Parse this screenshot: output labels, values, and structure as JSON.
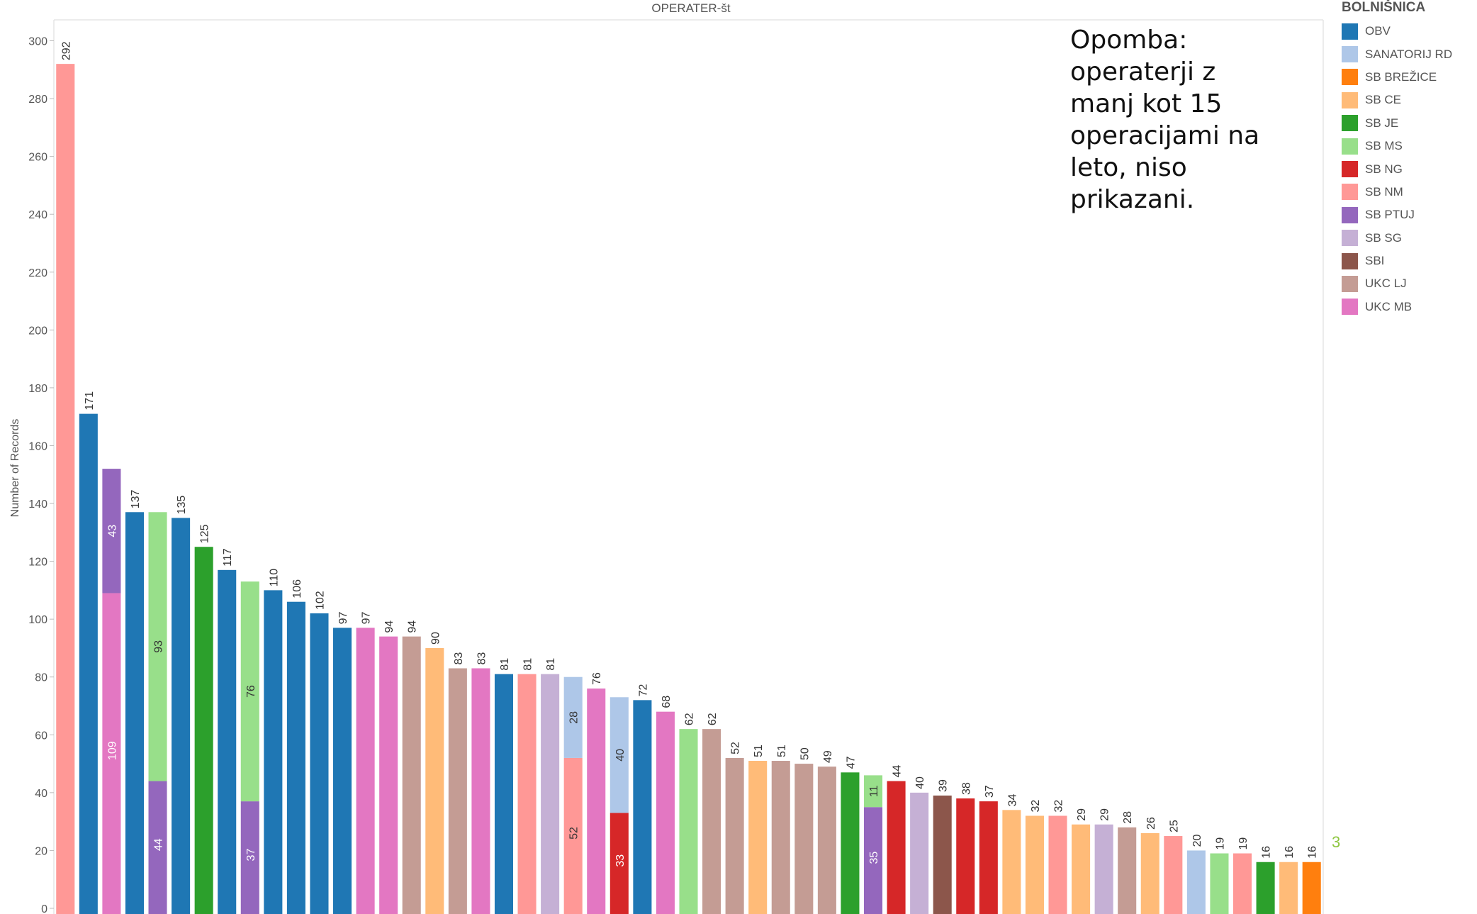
{
  "chart_data": {
    "type": "bar",
    "stacked": true,
    "title": "OPERATER-št",
    "ylabel": "Number of Records",
    "xlabel": "",
    "ylim": [
      0,
      305
    ],
    "yticks": [
      0,
      20,
      40,
      60,
      80,
      100,
      120,
      140,
      160,
      180,
      200,
      220,
      240,
      260,
      280,
      300
    ],
    "legend": {
      "title": "BOLNIŠNICA",
      "placement": "right",
      "items": [
        {
          "name": "OBV",
          "color": "#1f77b4"
        },
        {
          "name": "SANATORIJ RD",
          "color": "#aec7e8"
        },
        {
          "name": "SB BREŽICE",
          "color": "#ff7f0e"
        },
        {
          "name": "SB CE",
          "color": "#ffbb78"
        },
        {
          "name": "SB JE",
          "color": "#2ca02c"
        },
        {
          "name": "SB MS",
          "color": "#98df8a"
        },
        {
          "name": "SB NG",
          "color": "#d62728"
        },
        {
          "name": "SB NM",
          "color": "#ff9896"
        },
        {
          "name": "SB PTUJ",
          "color": "#9467bd"
        },
        {
          "name": "SB SG",
          "color": "#c5b0d5"
        },
        {
          "name": "SBI",
          "color": "#8c564b"
        },
        {
          "name": "UKC LJ",
          "color": "#c49c94"
        },
        {
          "name": "UKC MB",
          "color": "#e377c2"
        }
      ]
    },
    "bars": [
      {
        "total": 292,
        "segments": [
          {
            "series": "SB NM",
            "value": 292
          }
        ]
      },
      {
        "total": 171,
        "segments": [
          {
            "series": "OBV",
            "value": 171
          }
        ]
      },
      {
        "total": 152,
        "segments": [
          {
            "series": "UKC MB",
            "value": 109,
            "label": "109"
          },
          {
            "series": "SB PTUJ",
            "value": 43,
            "label": "43"
          }
        ]
      },
      {
        "total": 137,
        "segments": [
          {
            "series": "OBV",
            "value": 137
          }
        ]
      },
      {
        "total": 137,
        "segments": [
          {
            "series": "SB PTUJ",
            "value": 44,
            "label": "44"
          },
          {
            "series": "SB MS",
            "value": 93,
            "label": "93"
          }
        ]
      },
      {
        "total": 135,
        "segments": [
          {
            "series": "OBV",
            "value": 135
          }
        ]
      },
      {
        "total": 125,
        "segments": [
          {
            "series": "SB JE",
            "value": 125
          }
        ]
      },
      {
        "total": 117,
        "segments": [
          {
            "series": "OBV",
            "value": 117
          }
        ]
      },
      {
        "total": 113,
        "segments": [
          {
            "series": "SB PTUJ",
            "value": 37,
            "label": "37"
          },
          {
            "series": "SB MS",
            "value": 76,
            "label": "76"
          }
        ]
      },
      {
        "total": 110,
        "segments": [
          {
            "series": "OBV",
            "value": 110
          }
        ]
      },
      {
        "total": 106,
        "segments": [
          {
            "series": "OBV",
            "value": 106
          }
        ]
      },
      {
        "total": 102,
        "segments": [
          {
            "series": "OBV",
            "value": 102
          }
        ]
      },
      {
        "total": 97,
        "segments": [
          {
            "series": "OBV",
            "value": 97
          }
        ]
      },
      {
        "total": 97,
        "segments": [
          {
            "series": "UKC MB",
            "value": 97
          }
        ]
      },
      {
        "total": 94,
        "segments": [
          {
            "series": "UKC MB",
            "value": 94
          }
        ]
      },
      {
        "total": 94,
        "segments": [
          {
            "series": "UKC LJ",
            "value": 94
          }
        ]
      },
      {
        "total": 90,
        "segments": [
          {
            "series": "SB CE",
            "value": 90
          }
        ]
      },
      {
        "total": 83,
        "segments": [
          {
            "series": "UKC LJ",
            "value": 83
          }
        ]
      },
      {
        "total": 83,
        "segments": [
          {
            "series": "UKC MB",
            "value": 83
          }
        ]
      },
      {
        "total": 81,
        "segments": [
          {
            "series": "OBV",
            "value": 81
          }
        ]
      },
      {
        "total": 81,
        "segments": [
          {
            "series": "SB NM",
            "value": 81
          }
        ]
      },
      {
        "total": 81,
        "segments": [
          {
            "series": "SB SG",
            "value": 81
          }
        ]
      },
      {
        "total": 80,
        "segments": [
          {
            "series": "SB NM",
            "value": 52,
            "label": "52"
          },
          {
            "series": "SANATORIJ RD",
            "value": 28,
            "label": "28"
          }
        ]
      },
      {
        "total": 76,
        "segments": [
          {
            "series": "UKC MB",
            "value": 76
          }
        ]
      },
      {
        "total": 73,
        "segments": [
          {
            "series": "SB NG",
            "value": 33,
            "label": "33"
          },
          {
            "series": "SANATORIJ RD",
            "value": 40,
            "label": "40"
          }
        ]
      },
      {
        "total": 72,
        "segments": [
          {
            "series": "OBV",
            "value": 72
          }
        ]
      },
      {
        "total": 68,
        "segments": [
          {
            "series": "UKC MB",
            "value": 68
          }
        ]
      },
      {
        "total": 62,
        "segments": [
          {
            "series": "SB MS",
            "value": 62
          }
        ]
      },
      {
        "total": 62,
        "segments": [
          {
            "series": "UKC LJ",
            "value": 62
          }
        ]
      },
      {
        "total": 52,
        "segments": [
          {
            "series": "UKC LJ",
            "value": 52
          }
        ]
      },
      {
        "total": 51,
        "segments": [
          {
            "series": "SB CE",
            "value": 51
          }
        ]
      },
      {
        "total": 51,
        "segments": [
          {
            "series": "UKC LJ",
            "value": 51
          }
        ]
      },
      {
        "total": 50,
        "segments": [
          {
            "series": "UKC LJ",
            "value": 50
          }
        ]
      },
      {
        "total": 49,
        "segments": [
          {
            "series": "UKC LJ",
            "value": 49
          }
        ]
      },
      {
        "total": 47,
        "segments": [
          {
            "series": "SB JE",
            "value": 47
          }
        ]
      },
      {
        "total": 46,
        "segments": [
          {
            "series": "SB PTUJ",
            "value": 35,
            "label": "35"
          },
          {
            "series": "SB MS",
            "value": 11,
            "label": "11"
          }
        ]
      },
      {
        "total": 44,
        "segments": [
          {
            "series": "SB NG",
            "value": 44
          }
        ]
      },
      {
        "total": 40,
        "segments": [
          {
            "series": "SB SG",
            "value": 40
          }
        ]
      },
      {
        "total": 39,
        "segments": [
          {
            "series": "SBI",
            "value": 39
          }
        ]
      },
      {
        "total": 38,
        "segments": [
          {
            "series": "SB NG",
            "value": 38
          }
        ]
      },
      {
        "total": 37,
        "segments": [
          {
            "series": "SB NG",
            "value": 37
          }
        ]
      },
      {
        "total": 34,
        "segments": [
          {
            "series": "SB CE",
            "value": 34
          }
        ]
      },
      {
        "total": 32,
        "segments": [
          {
            "series": "SB CE",
            "value": 32
          }
        ]
      },
      {
        "total": 32,
        "segments": [
          {
            "series": "SB NM",
            "value": 32
          }
        ]
      },
      {
        "total": 29,
        "segments": [
          {
            "series": "SB CE",
            "value": 29
          }
        ]
      },
      {
        "total": 29,
        "segments": [
          {
            "series": "SB SG",
            "value": 29
          }
        ]
      },
      {
        "total": 28,
        "segments": [
          {
            "series": "UKC LJ",
            "value": 28
          }
        ]
      },
      {
        "total": 26,
        "segments": [
          {
            "series": "SB CE",
            "value": 26
          }
        ]
      },
      {
        "total": 25,
        "segments": [
          {
            "series": "SB NM",
            "value": 25
          }
        ]
      },
      {
        "total": 20,
        "segments": [
          {
            "series": "SANATORIJ RD",
            "value": 20
          }
        ]
      },
      {
        "total": 19,
        "segments": [
          {
            "series": "SB MS",
            "value": 19
          }
        ]
      },
      {
        "total": 19,
        "segments": [
          {
            "series": "SB NM",
            "value": 19
          }
        ]
      },
      {
        "total": 16,
        "segments": [
          {
            "series": "SB JE",
            "value": 16
          }
        ]
      },
      {
        "total": 16,
        "segments": [
          {
            "series": "SB CE",
            "value": 16
          }
        ]
      },
      {
        "total": 16,
        "segments": [
          {
            "series": "SB BREŽICE",
            "value": 16
          }
        ]
      }
    ]
  },
  "note": {
    "lines": [
      "Opomba:",
      "operaterji z",
      "manj kot 15",
      "operacijami na",
      "leto, niso",
      "prikazani."
    ]
  },
  "corner_number": "3"
}
